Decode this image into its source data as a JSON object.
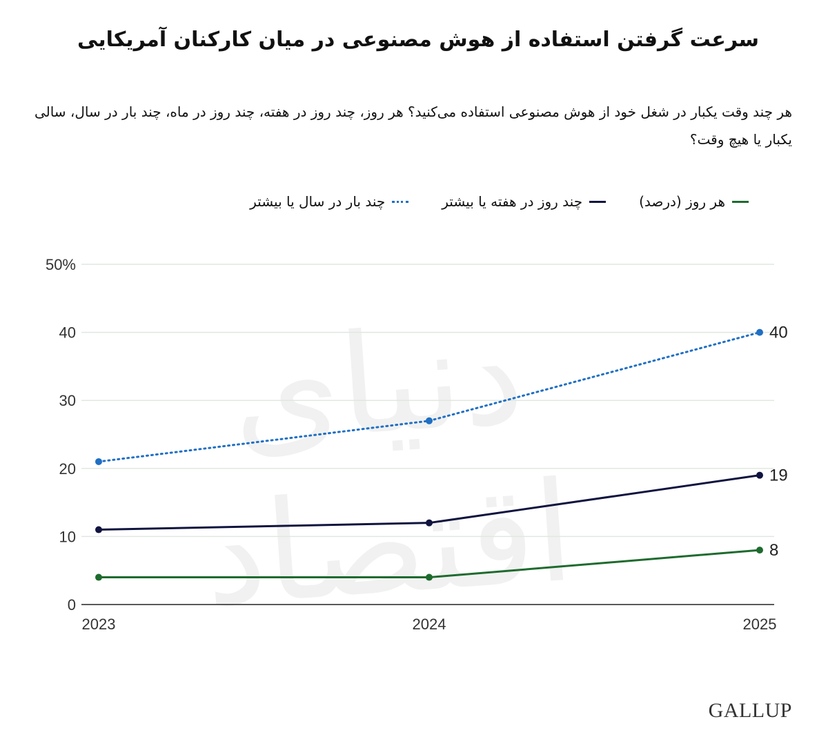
{
  "chart_data": {
    "type": "line",
    "title": "سرعت گرفتن استفاده از هوش مصنوعی در میان کارکنان آمریکایی",
    "subtitle": "هر چند وقت یکبار در شغل خود از هوش مصنوعی استفاده می‌کنید؟ هر روز، چند روز در هفته، چند روز در ماه، چند بار در سال، سالی یکبار یا هیچ وقت؟",
    "x": [
      "2023",
      "2024",
      "2025"
    ],
    "ylim": [
      0,
      50
    ],
    "yticks": [
      "0",
      "10",
      "20",
      "30",
      "40",
      "50%"
    ],
    "grid": true,
    "legend_position": "top",
    "series": [
      {
        "name": "هر روز (درصد)",
        "values": [
          4,
          4,
          8
        ],
        "color": "#1e6b2e",
        "style": "solid",
        "end_label": "8"
      },
      {
        "name": "چند روز در هفته یا بیشتر",
        "values": [
          11,
          12,
          19
        ],
        "color": "#10143f",
        "style": "solid",
        "end_label": "19"
      },
      {
        "name": "چند بار در سال یا بیشتر",
        "values": [
          21,
          27,
          40
        ],
        "color": "#1f6fc4",
        "style": "dotted",
        "end_label": "40"
      }
    ]
  },
  "watermark": "دنیای اقتصاد",
  "brand": "GALLUP"
}
